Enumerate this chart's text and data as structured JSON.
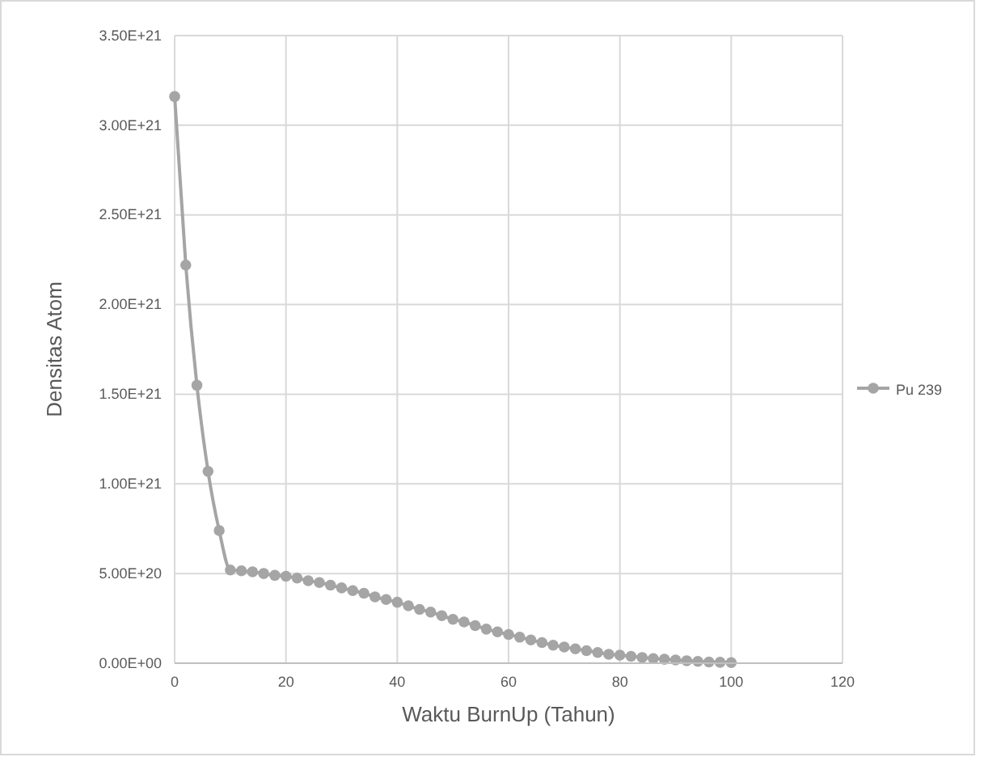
{
  "chart_data": {
    "type": "line",
    "xlabel": "Waktu BurnUp (Tahun)",
    "ylabel": "Densitas Atom",
    "x": [
      0,
      2,
      4,
      6,
      8,
      10,
      12,
      14,
      16,
      18,
      20,
      22,
      24,
      26,
      28,
      30,
      32,
      34,
      36,
      38,
      40,
      42,
      44,
      46,
      48,
      50,
      52,
      54,
      56,
      58,
      60,
      62,
      64,
      66,
      68,
      70,
      72,
      74,
      76,
      78,
      80,
      82,
      84,
      86,
      88,
      90,
      92,
      94,
      96,
      98,
      100
    ],
    "series": [
      {
        "name": "Pu 239",
        "color": "#a5a5a5",
        "values": [
          3.16e+21,
          2.22e+21,
          1.55e+21,
          1.07e+21,
          7.4e+20,
          5.2e+20,
          5.15e+20,
          5.1e+20,
          5e+20,
          4.9e+20,
          4.85e+20,
          4.75e+20,
          4.6e+20,
          4.5e+20,
          4.35e+20,
          4.2e+20,
          4.05e+20,
          3.9e+20,
          3.7e+20,
          3.55e+20,
          3.4e+20,
          3.2e+20,
          3e+20,
          2.85e+20,
          2.65e+20,
          2.45e+20,
          2.3e+20,
          2.1e+20,
          1.9e+20,
          1.75e+20,
          1.6e+20,
          1.45e+20,
          1.3e+20,
          1.15e+20,
          1e+20,
          9e+19,
          8e+19,
          7e+19,
          6e+19,
          5e+19,
          4.5e+19,
          3.8e+19,
          3.2e+19,
          2.6e+19,
          2.2e+19,
          1.8e+19,
          1.4e+19,
          1e+19,
          7e+18,
          5e+18,
          3e+18
        ]
      }
    ],
    "xlim": [
      0,
      120
    ],
    "xticks": [
      0,
      20,
      40,
      60,
      80,
      100,
      120
    ],
    "ylim": [
      0,
      3.5e+21
    ],
    "yticks": [
      {
        "value": 0,
        "label": "0.00E+00"
      },
      {
        "value": 5e+20,
        "label": "5.00E+20"
      },
      {
        "value": 1e+21,
        "label": "1.00E+21"
      },
      {
        "value": 1.5e+21,
        "label": "1.50E+21"
      },
      {
        "value": 2e+21,
        "label": "2.00E+21"
      },
      {
        "value": 2.5e+21,
        "label": "2.50E+21"
      },
      {
        "value": 3e+21,
        "label": "3.00E+21"
      },
      {
        "value": 3.5e+21,
        "label": "3.50E+21"
      }
    ],
    "grid": true,
    "legend": "right",
    "marker": "circle",
    "line_style": "solid"
  }
}
